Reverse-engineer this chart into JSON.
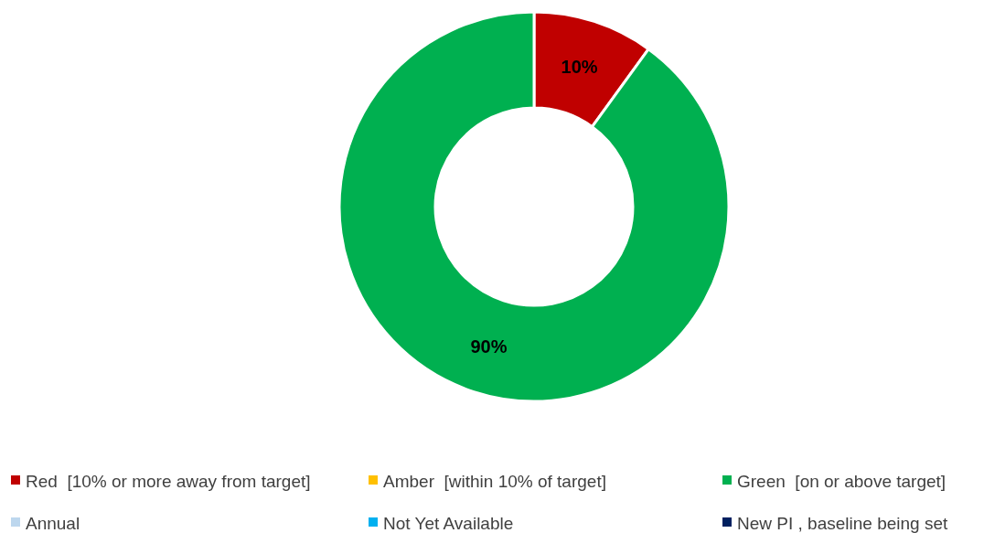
{
  "chart_data": {
    "type": "donut",
    "categories": [
      "Red  [10% or more away from target]",
      "Amber  [within 10% of target]",
      "Green  [on or above target]",
      "Annual",
      "Not Yet Available",
      "New PI , baseline being set"
    ],
    "values": [
      10,
      0,
      90,
      0,
      0,
      0
    ],
    "colors": [
      "#c00000",
      "#ffc000",
      "#00b050",
      "#bdd7ee",
      "#00b0f0",
      "#002060"
    ],
    "value_labels": [
      "10%",
      null,
      "90%",
      null,
      null,
      null
    ],
    "legend": "bottom"
  }
}
